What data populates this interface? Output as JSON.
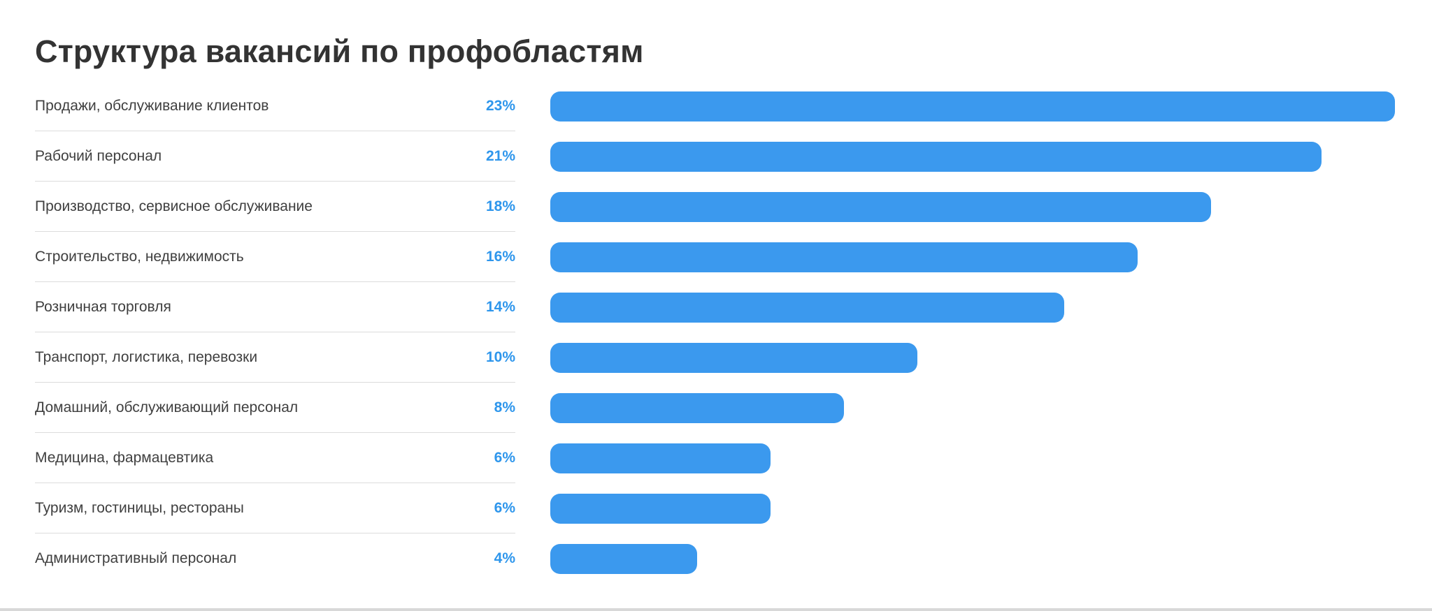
{
  "page": {
    "background": "#ffffff",
    "bottom_strip_color": "#d8d8d8"
  },
  "chart_data": {
    "type": "bar",
    "orientation": "horizontal",
    "title": "Структура вакансий по профобластям",
    "categories": [
      "Продажи, обслуживание клиентов",
      "Рабочий персонал",
      "Производство, сервисное обслуживание",
      "Строительство, недвижимость",
      "Розничная торговля",
      "Транспорт, логистика, перевозки",
      "Домашний, обслуживающий персонал",
      "Медицина, фармацевтика",
      "Туризм, гостиницы, рестораны",
      "Административный персонал"
    ],
    "values": [
      23,
      21,
      18,
      16,
      14,
      10,
      8,
      6,
      6,
      4
    ],
    "value_labels": [
      "23%",
      "21%",
      "18%",
      "16%",
      "14%",
      "10%",
      "8%",
      "6%",
      "6%",
      "4%"
    ],
    "value_suffix": "%",
    "xlabel": "",
    "ylabel": "",
    "xlim": [
      0,
      23
    ],
    "grid": false,
    "legend": "none",
    "bar_color": "#3b99ee",
    "value_color": "#2e96ec",
    "label_color": "#3f3f3f",
    "title_color": "#333333",
    "divider_color": "#dcdcdc"
  }
}
